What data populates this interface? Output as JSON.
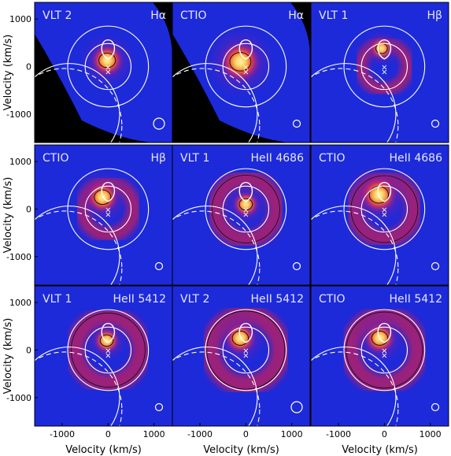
{
  "chart_data": {
    "type": "heatmap",
    "xlabel": "Velocity (km/s)",
    "ylabel": "Velocity (km/s)",
    "xlim": [
      -1600,
      1400
    ],
    "ylim": [
      -1600,
      1350
    ],
    "xticks": [
      -1000,
      0,
      1000
    ],
    "yticks": [
      1000,
      0,
      -1000
    ],
    "colors": {
      "background": "#1d2ad9",
      "mask": "#000000",
      "overlay": "#ffffff",
      "peak": "#fff6a8",
      "mid": "#e0204a"
    },
    "panels": [
      {
        "telescope": "VLT 2",
        "line": "Hα"
      },
      {
        "telescope": "CTIO",
        "line": "Hα"
      },
      {
        "telescope": "VLT 1",
        "line": "Hβ"
      },
      {
        "telescope": "CTIO",
        "line": "Hβ"
      },
      {
        "telescope": "VLT 1",
        "line": "HeII 4686"
      },
      {
        "telescope": "CTIO",
        "line": "HeII 4686"
      },
      {
        "telescope": "VLT 1",
        "line": "HeII 5412"
      },
      {
        "telescope": "VLT 2",
        "line": "HeII 5412"
      },
      {
        "telescope": "CTIO",
        "line": "HeII 5412"
      }
    ]
  }
}
